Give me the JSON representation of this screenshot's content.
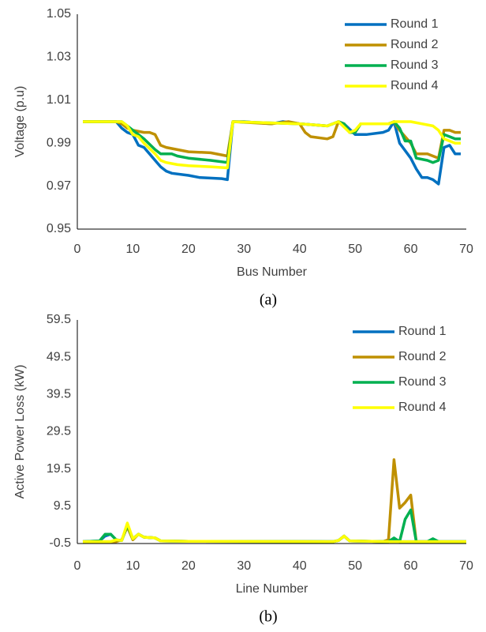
{
  "chart_data": [
    {
      "type": "line",
      "caption": "(a)",
      "xlabel": "Bus Number",
      "ylabel": "Voltage (p.u)",
      "xlim": [
        0,
        70
      ],
      "xticks": [
        0,
        10,
        20,
        30,
        40,
        50,
        60,
        70
      ],
      "ylim": [
        0.95,
        1.05
      ],
      "yticks": [
        0.95,
        0.97,
        0.99,
        1.01,
        1.03,
        1.05
      ],
      "legend": "top-right",
      "series": [
        {
          "name": "Round 1",
          "color": "#0070c0",
          "x": [
            1,
            7,
            8,
            9,
            10,
            11,
            12,
            13,
            14,
            15,
            16,
            17,
            20,
            22,
            26,
            27,
            28,
            30,
            35,
            37,
            40,
            45,
            47,
            48,
            50,
            52,
            55,
            56,
            57,
            58,
            60,
            61,
            62,
            63,
            64,
            65,
            66,
            67,
            68,
            69
          ],
          "values": [
            1.0,
            1.0,
            0.997,
            0.995,
            0.994,
            0.989,
            0.988,
            0.985,
            0.982,
            0.979,
            0.977,
            0.976,
            0.975,
            0.974,
            0.9735,
            0.973,
            1.0,
            1.0,
            0.999,
            1.0,
            0.999,
            0.998,
            1.0,
            0.999,
            0.994,
            0.994,
            0.995,
            0.996,
            1.0,
            0.99,
            0.983,
            0.978,
            0.974,
            0.974,
            0.973,
            0.971,
            0.988,
            0.989,
            0.985,
            0.985
          ]
        },
        {
          "name": "Round 2",
          "color": "#bf9000",
          "x": [
            1,
            7,
            8,
            9,
            10,
            12,
            13,
            14,
            15,
            16,
            18,
            20,
            24,
            27,
            28,
            35,
            38,
            40,
            41,
            42,
            45,
            46,
            47,
            48,
            49,
            50,
            51,
            56,
            57,
            58,
            60,
            61,
            63,
            65,
            66,
            67,
            68,
            69
          ],
          "values": [
            1.0,
            1.0,
            0.999,
            0.997,
            0.996,
            0.995,
            0.995,
            0.994,
            0.989,
            0.988,
            0.987,
            0.986,
            0.9855,
            0.984,
            1.0,
            0.999,
            1.0,
            0.999,
            0.995,
            0.993,
            0.992,
            0.993,
            1.0,
            0.999,
            0.995,
            0.995,
            0.999,
            0.999,
            1.0,
            0.996,
            0.99,
            0.985,
            0.985,
            0.983,
            0.996,
            0.996,
            0.995,
            0.995
          ]
        },
        {
          "name": "Round 3",
          "color": "#00b050",
          "x": [
            1,
            8,
            9,
            10,
            12,
            14,
            15,
            17,
            18,
            20,
            24,
            27,
            28,
            40,
            45,
            47,
            48,
            49,
            50,
            51,
            56,
            57,
            58,
            59,
            60,
            61,
            63,
            64,
            65,
            66,
            67,
            68,
            69
          ],
          "values": [
            1.0,
            1.0,
            0.998,
            0.996,
            0.992,
            0.987,
            0.985,
            0.985,
            0.984,
            0.983,
            0.982,
            0.981,
            1.0,
            0.999,
            0.998,
            1.0,
            0.999,
            0.995,
            0.995,
            0.999,
            0.999,
            1.0,
            0.997,
            0.991,
            0.991,
            0.983,
            0.982,
            0.981,
            0.982,
            0.994,
            0.993,
            0.992,
            0.992
          ]
        },
        {
          "name": "Round 4",
          "color": "#ffff00",
          "x": [
            1,
            8,
            9,
            10,
            11,
            12,
            14,
            15,
            16,
            18,
            20,
            24,
            27,
            28,
            40,
            45,
            47,
            49,
            50,
            51,
            56,
            57,
            60,
            62,
            64,
            65,
            66,
            67,
            68,
            69
          ],
          "values": [
            1.0,
            1.0,
            0.998,
            0.994,
            0.993,
            0.99,
            0.985,
            0.982,
            0.981,
            0.98,
            0.9795,
            0.979,
            0.9785,
            1.0,
            0.999,
            0.998,
            1.0,
            0.995,
            0.996,
            0.999,
            0.999,
            1.0,
            1.0,
            0.999,
            0.998,
            0.996,
            0.992,
            0.991,
            0.99,
            0.99
          ]
        }
      ]
    },
    {
      "type": "line",
      "caption": "(b)",
      "xlabel": "Line Number",
      "ylabel": "Active Power Loss (kW)",
      "xlim": [
        0,
        70
      ],
      "xticks": [
        0,
        10,
        20,
        30,
        40,
        50,
        60,
        70
      ],
      "ylim": [
        -0.5,
        59.5
      ],
      "yticks": [
        -0.5,
        9.5,
        19.5,
        29.5,
        39.5,
        49.5,
        59.5
      ],
      "legend": "top-right",
      "series": [
        {
          "name": "Round 1",
          "color": "#0070c0",
          "x": [
            1,
            4,
            5,
            6,
            7,
            8,
            9,
            10,
            11,
            12,
            14,
            15,
            20,
            46,
            47,
            48,
            49,
            56,
            57,
            58,
            60,
            62,
            70
          ],
          "values": [
            0,
            0.2,
            1.5,
            2,
            0.5,
            0.3,
            4.5,
            0.8,
            2,
            1.2,
            1,
            0.2,
            0.1,
            0,
            0.3,
            1.5,
            0.2,
            0,
            0.5,
            0,
            0,
            0,
            0
          ]
        },
        {
          "name": "Round 2",
          "color": "#bf9000",
          "x": [
            1,
            7,
            8,
            9,
            10,
            11,
            12,
            14,
            15,
            20,
            46,
            47,
            48,
            49,
            55,
            56,
            57,
            58,
            59,
            60,
            61,
            70
          ],
          "values": [
            0,
            0,
            0.5,
            4,
            0.5,
            2,
            1.2,
            1,
            0.2,
            0.1,
            0,
            0.3,
            1.5,
            0.2,
            0,
            0.5,
            22,
            9,
            10.5,
            12.5,
            0,
            0
          ]
        },
        {
          "name": "Round 3",
          "color": "#00b050",
          "x": [
            1,
            4,
            5,
            6,
            7,
            8,
            9,
            10,
            11,
            12,
            14,
            15,
            20,
            46,
            47,
            48,
            49,
            56,
            57,
            58,
            59,
            60,
            61,
            63,
            64,
            65,
            70
          ],
          "values": [
            0,
            0.2,
            2,
            2,
            0.5,
            0.3,
            4.5,
            0.8,
            2,
            1.2,
            1,
            0.2,
            0.1,
            0,
            0.3,
            1.5,
            0.2,
            0,
            1,
            0,
            6,
            8.5,
            0,
            0,
            0.8,
            0,
            0
          ]
        },
        {
          "name": "Round 4",
          "color": "#ffff00",
          "x": [
            1,
            6,
            7,
            8,
            9,
            10,
            11,
            12,
            14,
            15,
            20,
            46,
            47,
            48,
            49,
            56,
            57,
            60,
            62,
            70
          ],
          "values": [
            0,
            0,
            0.5,
            0.3,
            5,
            0.8,
            2,
            1.2,
            1,
            0.2,
            0.1,
            0,
            0.3,
            1.5,
            0.2,
            0,
            0,
            0,
            0,
            0
          ]
        }
      ]
    }
  ]
}
